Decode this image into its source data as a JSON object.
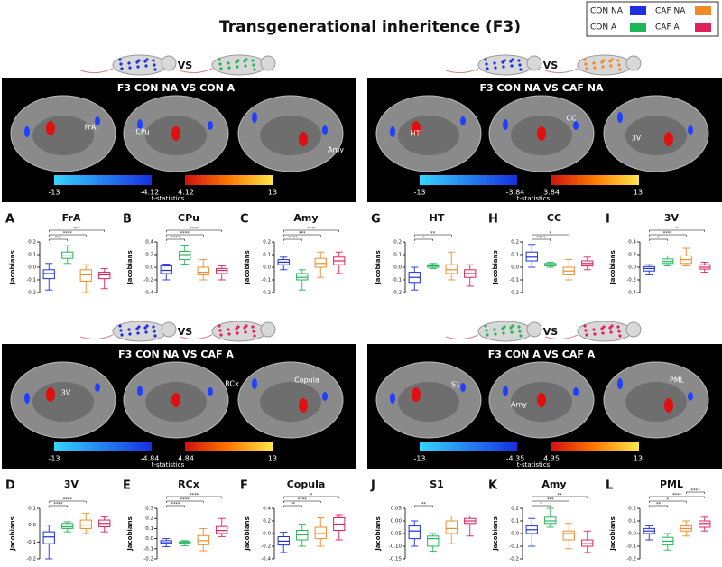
{
  "header": {
    "title": "Transgenerational inheritence (F3)"
  },
  "legend": [
    {
      "label": "CON NA",
      "color": "#1f2fe0"
    },
    {
      "label": "CAF NA",
      "color": "#f08a2a"
    },
    {
      "label": "CON A",
      "color": "#22b65a"
    },
    {
      "label": "CAF A",
      "color": "#e0205a"
    }
  ],
  "comparisons": [
    {
      "heading": "F3  CON NA VS CON A",
      "vs": "VS",
      "regions": [
        "FrA",
        "CPu",
        "Amy"
      ],
      "colorbar": {
        "ticks": [
          "-13",
          "-4.12",
          "4.12",
          "13"
        ],
        "label": "t-statistics"
      },
      "panels": [
        {
          "letter": "A",
          "title": "FrA",
          "ylabel": "Jacobians",
          "ylim": [
            -0.2,
            0.2
          ],
          "yticks": [
            -0.2,
            -0.1,
            {
              "value": 0,
              "label": "0.0"
            },
            0.1,
            0.2
          ],
          "boxes": [
            [
              -0.18,
              -0.09,
              -0.05,
              -0.02,
              0.03
            ],
            [
              0.03,
              0.07,
              0.09,
              0.12,
              0.17
            ],
            [
              -0.2,
              -0.11,
              -0.06,
              -0.02,
              0.02
            ],
            [
              -0.17,
              -0.09,
              -0.06,
              -0.04,
              -0.01
            ]
          ],
          "significance": [
            "***",
            "****",
            "***"
          ]
        },
        {
          "letter": "B",
          "title": "CPu",
          "ylabel": "Jacobians",
          "ylim": [
            -0.4,
            0.4
          ],
          "yticks": [
            -0.4,
            -0.2,
            {
              "value": 0,
              "label": "0.0"
            },
            0.2,
            0.4
          ],
          "boxes": [
            [
              -0.2,
              -0.1,
              -0.05,
              0.02,
              0.05
            ],
            [
              0.05,
              0.12,
              0.2,
              0.25,
              0.35
            ],
            [
              -0.2,
              -0.12,
              -0.08,
              0,
              0.12
            ],
            [
              -0.2,
              -0.1,
              -0.05,
              -0.02,
              0.02
            ]
          ],
          "significance": [
            "****",
            "****",
            "****"
          ]
        },
        {
          "letter": "C",
          "title": "Amy",
          "ylabel": "Jacobians",
          "ylim": [
            -0.2,
            0.2
          ],
          "yticks": [
            -0.2,
            -0.1,
            {
              "value": 0,
              "label": "0.0"
            },
            0.1,
            0.2
          ],
          "boxes": [
            [
              -0.02,
              0.02,
              0.04,
              0.06,
              0.08
            ],
            [
              -0.18,
              -0.1,
              -0.08,
              -0.05,
              -0.02
            ],
            [
              -0.08,
              0,
              0.03,
              0.07,
              0.12
            ],
            [
              -0.05,
              0.02,
              0.05,
              0.08,
              0.12
            ]
          ],
          "significance": [
            "****",
            "***",
            "****"
          ]
        }
      ]
    },
    {
      "heading": "F3  CON NA VS CAF NA",
      "vs": "VS",
      "regions": [
        "HT",
        "CC",
        "3V"
      ],
      "colorbar": {
        "ticks": [
          "-13",
          "-3.84",
          "3.84",
          "13"
        ],
        "label": "t-statistics"
      },
      "panels": [
        {
          "letter": "G",
          "title": "HT",
          "ylabel": "Jacobians",
          "ylim": [
            -0.2,
            0.2
          ],
          "yticks": [
            -0.2,
            -0.1,
            {
              "value": 0,
              "label": "0.0"
            },
            0.1,
            0.2
          ],
          "boxes": [
            [
              -0.18,
              -0.12,
              -0.08,
              -0.04,
              0
            ],
            [
              -0.01,
              0,
              0.01,
              0.02,
              0.03
            ],
            [
              -0.1,
              -0.05,
              -0.02,
              0.02,
              0.12
            ],
            [
              -0.15,
              -0.08,
              -0.05,
              -0.02,
              0.02
            ]
          ],
          "significance": [
            "*",
            "**"
          ]
        },
        {
          "letter": "H",
          "title": "CC",
          "ylabel": "Jacobians",
          "ylim": [
            -0.2,
            0.2
          ],
          "yticks": [
            -0.2,
            -0.1,
            {
              "value": 0,
              "label": "0.0"
            },
            0.1,
            0.2
          ],
          "boxes": [
            [
              0,
              0.05,
              0.08,
              0.12,
              0.18
            ],
            [
              0,
              0.01,
              0.02,
              0.03,
              0.04
            ],
            [
              -0.1,
              -0.06,
              -0.03,
              0,
              0.06
            ],
            [
              -0.02,
              0.01,
              0.03,
              0.05,
              0.08
            ]
          ],
          "significance": [
            "****",
            "*"
          ]
        },
        {
          "letter": "I",
          "title": "3V",
          "ylabel": "Jacobians",
          "ylim": [
            -0.4,
            0.4
          ],
          "yticks": [
            -0.4,
            -0.2,
            {
              "value": 0,
              "label": "0.0"
            },
            0.2,
            0.4
          ],
          "boxes": [
            [
              -0.12,
              -0.06,
              -0.02,
              0.01,
              0.04
            ],
            [
              0.02,
              0.06,
              0.09,
              0.13,
              0.18
            ],
            [
              0.02,
              0.06,
              0.12,
              0.18,
              0.3
            ],
            [
              -0.08,
              -0.03,
              0,
              0.04,
              0.08
            ]
          ],
          "significance": [
            "*",
            "****",
            "*"
          ]
        }
      ]
    },
    {
      "heading": "F3  CON NA VS CAF A",
      "vs": "VS",
      "regions": [
        "3V",
        "RCx",
        "Copula"
      ],
      "colorbar": {
        "ticks": [
          "-13",
          "-4.84",
          "4.84",
          "13"
        ],
        "label": "t-statistics"
      },
      "panels": [
        {
          "letter": "D",
          "title": "3V",
          "ylabel": "Jacobians",
          "ylim": [
            -0.2,
            0.1
          ],
          "yticks": [
            -0.2,
            -0.1,
            {
              "value": 0,
              "label": "0.0"
            },
            0.1
          ],
          "boxes": [
            [
              -0.2,
              -0.11,
              -0.07,
              -0.04,
              0
            ],
            [
              -0.04,
              -0.02,
              -0.01,
              0.01,
              0.02
            ],
            [
              -0.05,
              -0.02,
              0,
              0.03,
              0.07
            ],
            [
              -0.04,
              -0.01,
              0.01,
              0.03,
              0.05
            ]
          ],
          "significance": [
            "****",
            "****"
          ]
        },
        {
          "letter": "E",
          "title": "RCx",
          "ylabel": "Jacobians",
          "ylim": [
            -0.2,
            0.3
          ],
          "yticks": [
            -0.2,
            -0.1,
            {
              "value": 0,
              "label": "0.0"
            },
            0.1,
            0.2,
            0.3
          ],
          "boxes": [
            [
              -0.08,
              -0.05,
              -0.04,
              -0.02,
              0
            ],
            [
              -0.07,
              -0.05,
              -0.04,
              -0.03,
              -0.02
            ],
            [
              -0.12,
              -0.06,
              -0.02,
              0.03,
              0.1
            ],
            [
              0.02,
              0.05,
              0.08,
              0.12,
              0.2
            ]
          ],
          "significance": [
            "****",
            "****",
            "****"
          ]
        },
        {
          "letter": "F",
          "title": "Copula",
          "ylabel": "Jacobians",
          "ylim": [
            -0.4,
            0.4
          ],
          "yticks": [
            -0.4,
            -0.2,
            {
              "value": 0,
              "label": "0.0"
            },
            0.2,
            0.4
          ],
          "boxes": [
            [
              -0.3,
              -0.18,
              -0.12,
              -0.05,
              0.02
            ],
            [
              -0.2,
              -0.1,
              -0.02,
              0.05,
              0.15
            ],
            [
              -0.2,
              -0.08,
              0,
              0.1,
              0.25
            ],
            [
              -0.1,
              0.05,
              0.15,
              0.25,
              0.3
            ]
          ],
          "significance": [
            "**",
            "****",
            "*"
          ]
        }
      ]
    },
    {
      "heading": "F3  CON A VS CAF A",
      "vs": "VS",
      "regions": [
        "S1",
        "Amy",
        "PML"
      ],
      "colorbar": {
        "ticks": [
          "-13",
          "-4.35",
          "4.35",
          "13"
        ],
        "label": "t-statistics"
      },
      "panels": [
        {
          "letter": "J",
          "title": "S1",
          "ylabel": "Jacobians",
          "ylim": [
            -0.15,
            0.05
          ],
          "yticks": [
            -0.15,
            {
              "value": -0.1,
              "label": "-0.10"
            },
            -0.05,
            {
              "value": 0,
              "label": "0.00"
            },
            0.05
          ],
          "boxes": [
            [
              -0.1,
              -0.07,
              -0.04,
              -0.02,
              0
            ],
            [
              -0.12,
              -0.1,
              -0.07,
              -0.06,
              -0.05
            ],
            [
              -0.09,
              -0.05,
              -0.03,
              0,
              0.02
            ],
            [
              -0.06,
              -0.01,
              0,
              0.01,
              0.02
            ]
          ],
          "significance": [
            "**"
          ]
        },
        {
          "letter": "K",
          "title": "Amy",
          "ylabel": "Jacobians",
          "ylim": [
            -0.2,
            0.2
          ],
          "yticks": [
            -0.2,
            -0.1,
            {
              "value": 0,
              "label": "0.0"
            },
            0.1,
            0.2
          ],
          "boxes": [
            [
              -0.1,
              0,
              0.03,
              0.06,
              0.12
            ],
            [
              0.05,
              0.08,
              0.1,
              0.13,
              0.2
            ],
            [
              -0.12,
              -0.05,
              0,
              0.02,
              0.08
            ],
            [
              -0.15,
              -0.1,
              -0.08,
              -0.05,
              0.02
            ]
          ],
          "significance": [
            "*",
            "***",
            "**"
          ]
        },
        {
          "letter": "L",
          "title": "PML",
          "ylabel": "Jacobians",
          "ylim": [
            -0.2,
            0.2
          ],
          "yticks": [
            -0.2,
            -0.1,
            {
              "value": 0,
              "label": "0.0"
            },
            0.1,
            0.2
          ],
          "boxes": [
            [
              -0.05,
              0,
              0.02,
              0.04,
              0.06
            ],
            [
              -0.13,
              -0.09,
              -0.06,
              -0.03,
              0
            ],
            [
              -0.02,
              0.02,
              0.04,
              0.06,
              0.1
            ],
            [
              0.02,
              0.05,
              0.08,
              0.1,
              0.13
            ]
          ],
          "significance": [
            "**",
            "*",
            "****",
            "****"
          ]
        }
      ]
    }
  ]
}
